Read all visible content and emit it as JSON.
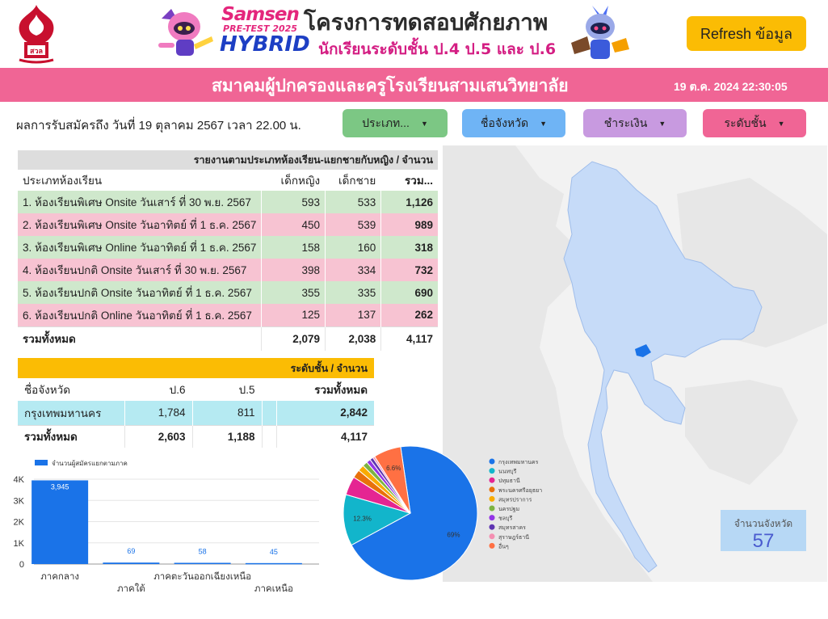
{
  "header": {
    "brand": {
      "line1": "Samsen",
      "line2": "PRE-TEST 2025",
      "line3": "HYBRID"
    },
    "project_title": "โครงการทดสอบศักยภาพ",
    "project_subtitle": "นักเรียนระดับชั้น ป.4 ป.5 และ ป.6",
    "refresh_label": "Refresh ข้อมูล"
  },
  "banner": {
    "title": "สมาคมผู้ปกครองและครูโรงเรียนสามเสนวิทยาลัย",
    "datetime": "19 ต.ค. 2024 22:30:05"
  },
  "registration_note": "ผลการรับสมัครถึง วันที่ 19 ตุลาคม 2567 เวลา 22.00 น.",
  "filters": {
    "type": "ประเภท...",
    "province": "ชื่อจังหวัด",
    "payment": "ชำระเงิน",
    "level": "ระดับชั้น"
  },
  "room_table": {
    "caption": "รายงานตามประเภทห้องเรียน-แยกชายกับหญิง / จำนวน",
    "headers": [
      "ประเภทห้องเรียน",
      "เด็กหญิง",
      "เด็กชาย",
      "รวม..."
    ],
    "rows": [
      [
        "1. ห้องเรียนพิเศษ Onsite วันเสาร์ ที่ 30 พ.ย. 2567",
        "593",
        "533",
        "1,126"
      ],
      [
        "2. ห้องเรียนพิเศษ Onsite วันอาทิตย์ ที่ 1 ธ.ค. 2567",
        "450",
        "539",
        "989"
      ],
      [
        "3. ห้องเรียนพิเศษ Online วันอาทิตย์ ที่ 1 ธ.ค. 2567",
        "158",
        "160",
        "318"
      ],
      [
        "4. ห้องเรียนปกติ Onsite วันเสาร์ ที่ 30 พ.ย. 2567",
        "398",
        "334",
        "732"
      ],
      [
        "5. ห้องเรียนปกติ Onsite วันอาทิตย์ ที่ 1 ธ.ค. 2567",
        "355",
        "335",
        "690"
      ],
      [
        "6. ห้องเรียนปกติ Online วันอาทิตย์ ที่ 1 ธ.ค. 2567",
        "125",
        "137",
        "262"
      ]
    ],
    "total": [
      "รวมทั้งหมด",
      "2,079",
      "2,038",
      "4,117"
    ]
  },
  "level_table": {
    "caption": "ระดับชั้น / จำนวน",
    "headers": [
      "ชื่อจังหวัด",
      "ป.6",
      "ป.5",
      "รวมทั้งหมด"
    ],
    "rows": [
      [
        "กรุงเทพมหานคร",
        "1,784",
        "811",
        "2,842"
      ]
    ],
    "total": [
      "รวมทั้งหมด",
      "2,603",
      "1,188",
      "4,117"
    ]
  },
  "province_count": {
    "label": "จำนวนจังหวัด",
    "value": "57"
  },
  "colors": {
    "banner": "#f06595",
    "refresh": "#fbbc04",
    "bar": "#1a73e8",
    "map_highlight": "#1a73e8",
    "map_light": "#c6dbf8"
  },
  "chart_data": [
    {
      "type": "bar",
      "legend": "จำนวนผู้สมัครแยกตามภาค",
      "categories": [
        "ภาคกลาง",
        "ภาคใต้",
        "ภาคตะวันออกเฉียงเหนือ",
        "ภาคเหนือ"
      ],
      "values": [
        3945,
        69,
        58,
        45
      ],
      "value_labels": [
        "3,945",
        "69",
        "58",
        "45"
      ],
      "yticks": [
        "0",
        "1K",
        "2K",
        "3K",
        "4K"
      ],
      "ylim": [
        0,
        4000
      ],
      "color": "#1a73e8"
    },
    {
      "type": "pie",
      "slices": [
        {
          "name": "กรุงเทพมหานคร",
          "value": 69,
          "label": "69%",
          "color": "#1a73e8"
        },
        {
          "name": "นนทบุรี",
          "value": 12.3,
          "label": "12.3%",
          "color": "#12b5cb"
        },
        {
          "name": "ปทุมธานี",
          "value": 4.5,
          "label": "",
          "color": "#e52592"
        },
        {
          "name": "พระนครศรีอยุธยา",
          "value": 2.0,
          "label": "",
          "color": "#e8710a"
        },
        {
          "name": "สมุทรปราการ",
          "value": 1.5,
          "label": "",
          "color": "#f9ab00"
        },
        {
          "name": "นครปฐม",
          "value": 1.2,
          "label": "",
          "color": "#7cb342"
        },
        {
          "name": "ชลบุรี",
          "value": 1.0,
          "label": "",
          "color": "#9334e6"
        },
        {
          "name": "สมุทรสาคร",
          "value": 0.8,
          "label": "",
          "color": "#5e35b1"
        },
        {
          "name": "สุราษฎร์ธานี",
          "value": 0.5,
          "label": "",
          "color": "#f48fb1"
        },
        {
          "name": "อื่นๆ",
          "value": 6.6,
          "label": "6.6%",
          "color": "#ff7043"
        }
      ]
    }
  ]
}
